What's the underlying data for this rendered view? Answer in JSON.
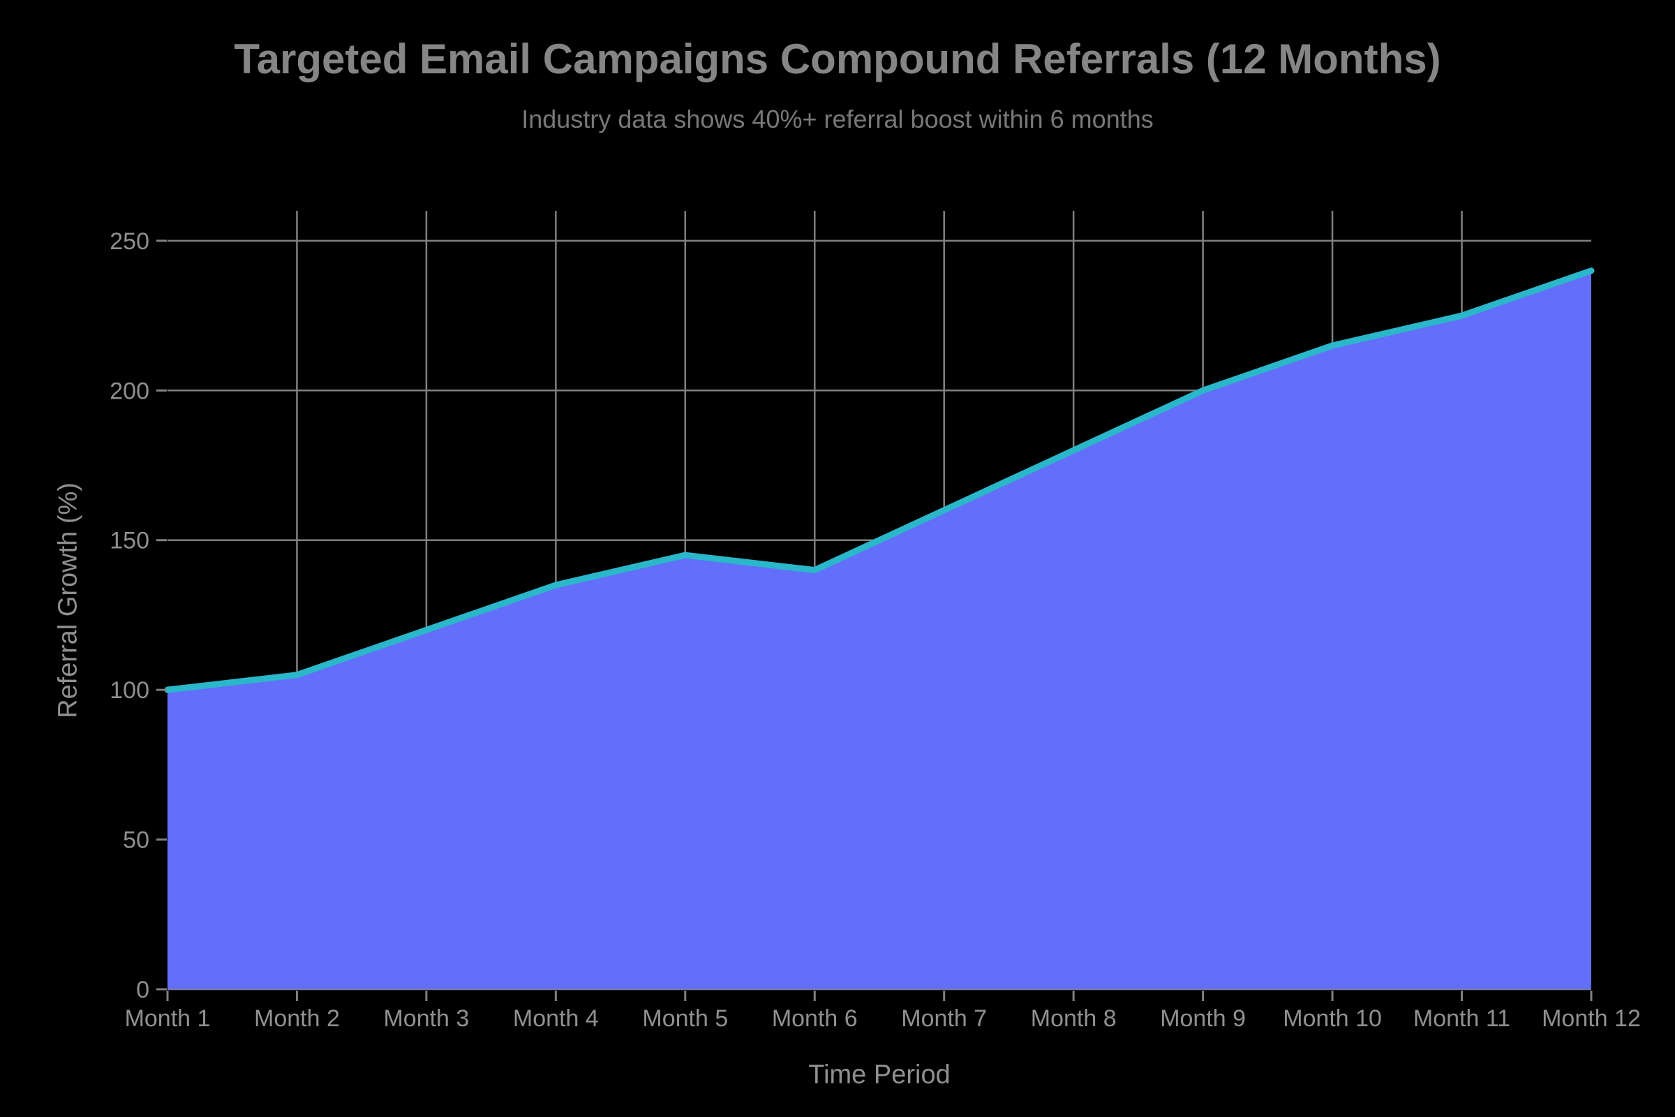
{
  "title": "Targeted Email Campaigns Compound Referrals (12 Months)",
  "subtitle": "Industry data shows 40%+ referral boost within 6 months",
  "chart_data": {
    "type": "area",
    "title": "Targeted Email Campaigns Compound Referrals (12 Months)",
    "subtitle": "Industry data shows 40%+ referral boost within 6 months",
    "categories": [
      "Month 1",
      "Month 2",
      "Month 3",
      "Month 4",
      "Month 5",
      "Month 6",
      "Month 7",
      "Month 8",
      "Month 9",
      "Month 10",
      "Month 11",
      "Month 12"
    ],
    "values": [
      100,
      105,
      120,
      135,
      145,
      140,
      160,
      180,
      200,
      215,
      225,
      240
    ],
    "series_name": "Referral Growth",
    "xlabel": "Time Period",
    "ylabel": "Referral Growth (%)",
    "yticks": [
      0,
      50,
      100,
      150,
      200,
      250
    ],
    "ylim": [
      0,
      260
    ],
    "grid": true,
    "legend_position": "none",
    "colors": {
      "background": "#000000",
      "area_fill": "#636efa",
      "line": "#2ab7ca",
      "grid": "#808080",
      "tick_text": "#909090",
      "title_text": "#858585",
      "subtitle_text": "#787878"
    }
  }
}
